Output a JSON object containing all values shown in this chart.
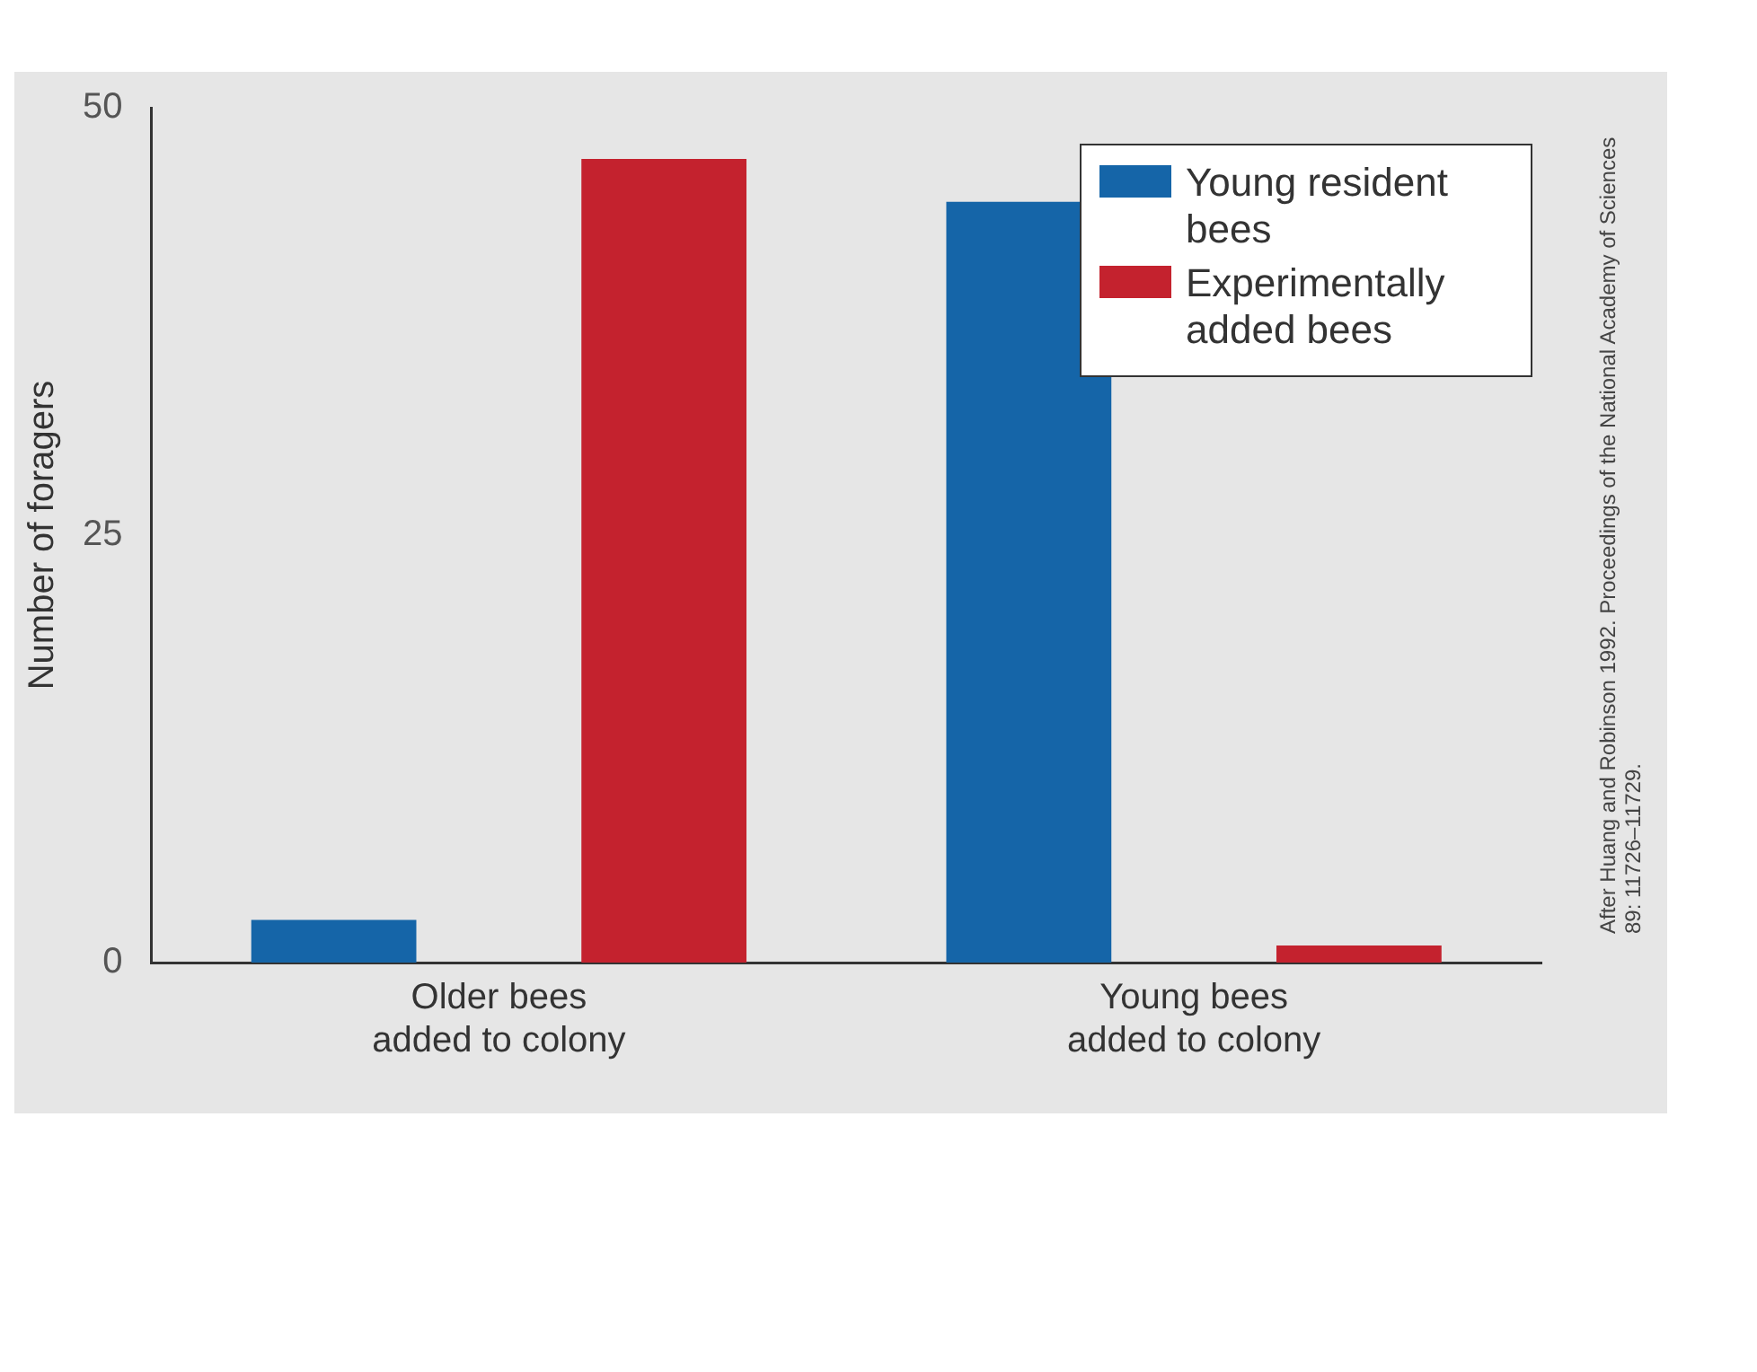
{
  "chart_data": {
    "type": "bar",
    "ylabel": "Number of foragers",
    "categories": [
      "Older bees added to colony",
      "Young bees added to colony"
    ],
    "series": [
      {
        "name": "Young resident bees",
        "color": "#1565a8",
        "values": [
          2.5,
          44.5
        ]
      },
      {
        "name": "Experimentally added bees",
        "color": "#c4222e",
        "values": [
          47,
          1
        ]
      }
    ],
    "ylim": [
      0,
      50
    ],
    "yticks": [
      0,
      25,
      50
    ],
    "grid": false,
    "legend": "top right",
    "annotations": [
      "After Huang and Robinson 1992. Proceedings of the National Academy of Sciences 89: 11726–11729."
    ]
  }
}
